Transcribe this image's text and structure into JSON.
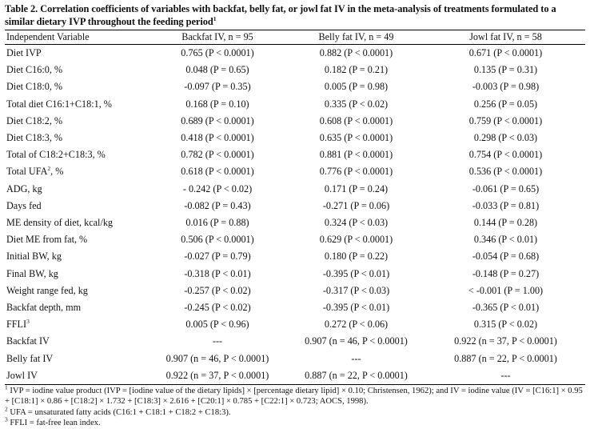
{
  "table": {
    "caption": "Table 2. Correlation coefficients of variables with backfat, belly fat, or jowl fat IV in the meta-analysis of treatments formulated to a similar dietary IVP throughout the feeding period",
    "caption_sup": "1",
    "headers": [
      "Independent Variable",
      "Backfat IV, n = 95",
      "Belly fat IV, n = 49",
      "Jowl fat IV, n = 58"
    ],
    "rows": [
      {
        "label": "Diet IVP",
        "sup": "",
        "values": [
          "0.765 (P < 0.0001)",
          "0.882 (P < 0.0001)",
          "0.671 (P < 0.0001)"
        ]
      },
      {
        "label": "Diet C16:0, %",
        "sup": "",
        "values": [
          "0.048 (P = 0.65)",
          "0.182 (P = 0.21)",
          "0.135 (P = 0.31)"
        ]
      },
      {
        "label": "Diet C18:0, %",
        "sup": "",
        "values": [
          "-0.097 (P = 0.35)",
          "0.005 (P = 0.98)",
          "-0.003 (P = 0.98)"
        ]
      },
      {
        "label": "Total diet C16:1+C18:1, %",
        "sup": "",
        "values": [
          "0.168 (P = 0.10)",
          "0.335 (P < 0.02)",
          "0.256 (P = 0.05)"
        ]
      },
      {
        "label": "Diet C18:2, %",
        "sup": "",
        "values": [
          "0.689 (P < 0.0001)",
          "0.608 (P < 0.0001)",
          "0.759 (P < 0.0001)"
        ]
      },
      {
        "label": "Diet C18:3, %",
        "sup": "",
        "values": [
          "0.418 (P < 0.0001)",
          "0.635 (P < 0.0001)",
          "0.298 (P < 0.03)"
        ]
      },
      {
        "label": "Total of C18:2+C18:3, %",
        "sup": "",
        "values": [
          "0.782 (P < 0.0001)",
          "0.881 (P < 0.0001)",
          "0.754 (P < 0.0001)"
        ]
      },
      {
        "label": "Total UFA",
        "sup": "2",
        "suffix": ", %",
        "values": [
          "0.618 (P < 0.0001)",
          "0.776 (P < 0.0001)",
          "0.536 (P < 0.0001)"
        ]
      },
      {
        "label": "ADG, kg",
        "sup": "",
        "values": [
          "- 0.242 (P < 0.02)",
          "0.171 (P = 0.24)",
          "-0.061 (P = 0.65)"
        ]
      },
      {
        "label": "Days fed",
        "sup": "",
        "values": [
          "-0.082 (P = 0.43)",
          "-0.271 (P = 0.06)",
          "-0.033 (P = 0.81)"
        ]
      },
      {
        "label": "ME density of diet, kcal/kg",
        "sup": "",
        "values": [
          "0.016 (P = 0.88)",
          "0.324 (P < 0.03)",
          "0.144 (P = 0.28)"
        ]
      },
      {
        "label": "Diet ME from fat, %",
        "sup": "",
        "values": [
          "0.506 (P < 0.0001)",
          "0.629 (P < 0.0001)",
          "0.346 (P < 0.01)"
        ]
      },
      {
        "label": "Initial BW, kg",
        "sup": "",
        "values": [
          "-0.027 (P = 0.79)",
          "0.180 (P = 0.22)",
          "-0.054 (P = 0.68)"
        ]
      },
      {
        "label": "Final BW, kg",
        "sup": "",
        "values": [
          "-0.318 (P < 0.01)",
          "-0.395 (P < 0.01)",
          "-0.148 (P = 0.27)"
        ]
      },
      {
        "label": "Weight range fed, kg",
        "sup": "",
        "values": [
          "-0.257 (P < 0.02)",
          "-0.317 (P < 0.03)",
          "< -0.001 (P = 1.00)"
        ]
      },
      {
        "label": "Backfat depth, mm",
        "sup": "",
        "values": [
          "-0.245 (P < 0.02)",
          "-0.395 (P < 0.01)",
          "-0.365 (P < 0.01)"
        ]
      },
      {
        "label": "FFLI",
        "sup": "3",
        "suffix": "",
        "values": [
          "0.005 (P < 0.96)",
          "0.272 (P < 0.06)",
          "0.315 (P < 0.02)"
        ]
      },
      {
        "label": "Backfat IV",
        "sup": "",
        "values": [
          "---",
          "0.907 (n = 46, P < 0.0001)",
          "0.922 (n = 37, P < 0.0001)"
        ]
      },
      {
        "label": "Belly fat IV",
        "sup": "",
        "values": [
          "0.907 (n = 46, P < 0.0001)",
          "---",
          "0.887 (n = 22, P < 0.0001)"
        ]
      },
      {
        "label": "Jowl IV",
        "sup": "",
        "values": [
          "0.922 (n = 37, P < 0.0001)",
          "0.887 (n = 22, P < 0.0001)",
          "---"
        ]
      }
    ],
    "footnotes": [
      {
        "mark": "1",
        "text": "IVP = iodine value product (IVP = [iodine value of the dietary lipids] × [percentage dietary lipid] × 0.10; Christensen, 1962); and IV = iodine value (IV = [C16:1] × 0.95 + [C18:1] × 0.86 + [C18:2] × 1.732 + [C18:3] × 2.616 + [C20:1] × 0.785 + [C22:1] × 0.723; AOCS, 1998)."
      },
      {
        "mark": "2",
        "text": "UFA = unsaturated fatty acids (C16:1 + C18:1 + C18:2 + C18:3)."
      },
      {
        "mark": "3",
        "text": "FFLI = fat-free lean index."
      }
    ]
  }
}
